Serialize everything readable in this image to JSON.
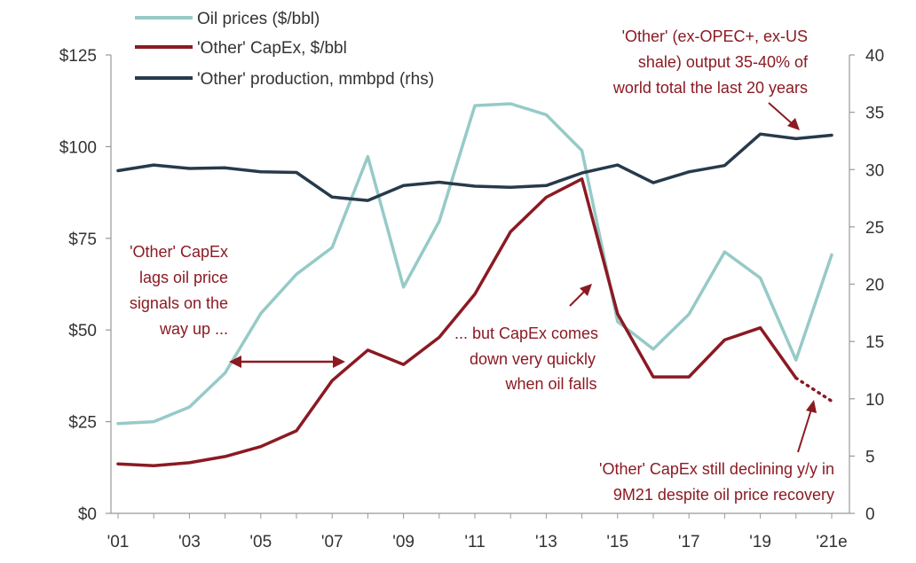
{
  "chart_data": {
    "type": "line",
    "x_labels": [
      "'01",
      "'03",
      "'05",
      "'07",
      "'09",
      "'11",
      "'13",
      "'15",
      "'17",
      "'19",
      "'21e"
    ],
    "years": [
      2001,
      2002,
      2003,
      2004,
      2005,
      2006,
      2007,
      2008,
      2009,
      2010,
      2011,
      2012,
      2013,
      2014,
      2015,
      2016,
      2017,
      2018,
      2019,
      2020,
      2021
    ],
    "x_range": [
      2001,
      2021
    ],
    "y_left": {
      "range": [
        0,
        125
      ],
      "ticks": [
        "$0",
        "$25",
        "$50",
        "$75",
        "$100",
        "$125"
      ],
      "tick_values": [
        0,
        25,
        50,
        75,
        100,
        125
      ]
    },
    "y_right": {
      "range": [
        0,
        40
      ],
      "ticks": [
        "0",
        "5",
        "10",
        "15",
        "20",
        "25",
        "30",
        "35",
        "40"
      ],
      "tick_values": [
        0,
        5,
        10,
        15,
        20,
        25,
        30,
        35,
        40
      ]
    },
    "legend": {
      "placement": "top-left"
    },
    "series": [
      {
        "name": "Oil prices ($/bbl)",
        "axis": "left",
        "color": "#96CAC7",
        "x": [
          2001,
          2002,
          2003,
          2004,
          2005,
          2006,
          2007,
          2008,
          2009,
          2010,
          2011,
          2012,
          2013,
          2014,
          2015,
          2016,
          2017,
          2018,
          2019,
          2020,
          2021
        ],
        "values": [
          24.5,
          25,
          29,
          38.3,
          54.5,
          65.2,
          72.5,
          97.3,
          61.7,
          79.6,
          111.2,
          111.7,
          108.7,
          98.9,
          52.3,
          44.8,
          54.3,
          71.3,
          64.2,
          41.8,
          70.5
        ]
      },
      {
        "name": "'Other' CapEx, $/bbl",
        "axis": "left",
        "color": "#8B1A23",
        "x": [
          2001,
          2002,
          2003,
          2004,
          2005,
          2006,
          2007,
          2008,
          2009,
          2010,
          2011,
          2012,
          2013,
          2014,
          2015,
          2016,
          2017,
          2018,
          2019,
          2020
        ],
        "values": [
          13.5,
          13,
          13.8,
          15.5,
          18.2,
          22.5,
          36.2,
          44.5,
          40.6,
          48,
          59.8,
          76.8,
          86.2,
          91.2,
          54.4,
          37.2,
          37.2,
          47.3,
          50.6,
          36.9
        ]
      },
      {
        "name": "'Other' CapEx estimate",
        "axis": "left",
        "color": "#8B1A23",
        "dotted": true,
        "x": [
          2020,
          2021
        ],
        "values": [
          36.9,
          30.6
        ]
      },
      {
        "name": "'Other' production, mmbpd (rhs)",
        "axis": "right",
        "color": "#273A4C",
        "x": [
          2001,
          2002,
          2003,
          2004,
          2005,
          2006,
          2007,
          2008,
          2009,
          2010,
          2011,
          2012,
          2013,
          2014,
          2015,
          2016,
          2017,
          2018,
          2019,
          2020,
          2021
        ],
        "values": [
          29.9,
          30.4,
          30.1,
          30.15,
          29.8,
          29.75,
          27.6,
          27.3,
          28.6,
          28.9,
          28.55,
          28.45,
          28.6,
          29.7,
          30.4,
          28.85,
          29.8,
          30.35,
          33.1,
          32.7,
          33
        ]
      }
    ],
    "annotations": {
      "lag": [
        "'Other' CapEx",
        "lags oil price",
        "signals on the",
        "way up ..."
      ],
      "falls": [
        "... but CapEx comes",
        "down very quickly",
        "when oil falls"
      ],
      "share": [
        "'Other' (ex-OPEC+, ex-US",
        "shale) output 35-40% of",
        "world total the last 20 years"
      ],
      "declining": [
        "'Other' CapEx still declining y/y in",
        "9M21 despite oil price recovery"
      ]
    },
    "colors": {
      "oil": "#96CAC7",
      "capex": "#8B1A23",
      "production": "#273A4C",
      "axis": "#999999"
    }
  }
}
